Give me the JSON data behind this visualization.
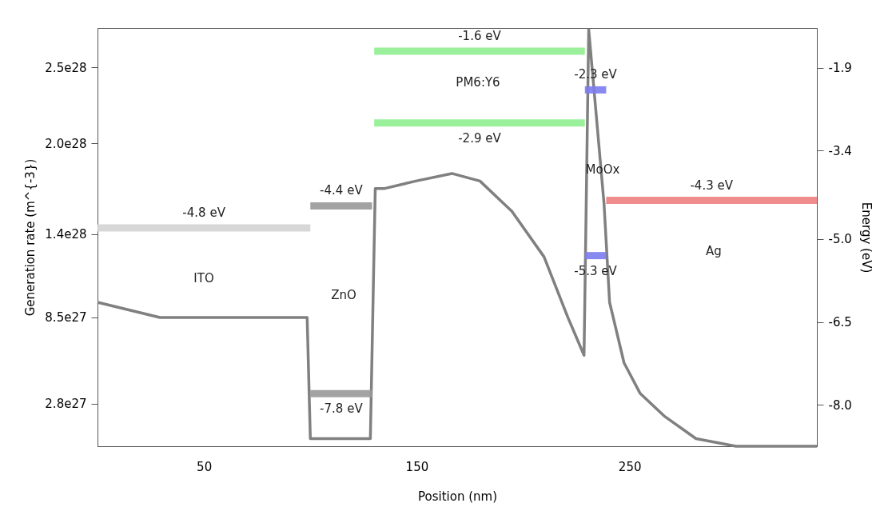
{
  "chart_data": {
    "type": "line",
    "xlabel": "Position (nm)",
    "ylabel": "Generation rate (m^{-3})",
    "y2label": "Energy (eV)",
    "xlim": [
      0,
      338
    ],
    "xticks": [
      50,
      150,
      250
    ],
    "ylim": [
      0,
      2.76e+28
    ],
    "yticks": [
      {
        "value": 2.8e+27,
        "label": "2.8e27"
      },
      {
        "value": 8.5e+27,
        "label": "8.5e27"
      },
      {
        "value": 1.4e+28,
        "label": "1.4e28"
      },
      {
        "value": 2e+28,
        "label": "2.0e28"
      },
      {
        "value": 2.5e+28,
        "label": "2.5e28"
      }
    ],
    "y2lim": [
      -8.75,
      -1.18
    ],
    "y2ticks": [
      -1.9,
      -3.4,
      {
        "value": -5,
        "label": "-5.0"
      },
      -6.5,
      {
        "value": -8,
        "label": "-8.0"
      }
    ],
    "series": [
      {
        "color": "#808080",
        "x": [
          0,
          29.3,
          59.4,
          82,
          98.5,
          100,
          104.5,
          115.8,
          128.2,
          130.5,
          134.6,
          149.6,
          166.5,
          179.7,
          194.7,
          209.8,
          221,
          228.6,
          230.8,
          238,
          240.6,
          247.4,
          254.9,
          266.2,
          281.2,
          300,
          338
        ],
        "values": [
          9.5e+27,
          8.5e+27,
          8.5e+27,
          8.5e+27,
          8.5e+27,
          5e+26,
          5e+26,
          5e+26,
          5e+26,
          1.7e+28,
          1.7e+28,
          1.75e+28,
          1.8e+28,
          1.75e+28,
          1.55e+28,
          1.25e+28,
          8.5e+27,
          6e+27,
          2.75e+28,
          1.6e+28,
          9.5e+27,
          5.5e+27,
          3.5e+27,
          2e+27,
          5e+26,
          0,
          0
        ]
      },
      {
        "axis": "y2",
        "color": "#d3d3d3",
        "x": [
          0,
          50,
          100
        ],
        "values": [
          -4.8,
          -4.8,
          -4.8
        ],
        "value_labels": [
          null,
          "-4.8 eV",
          null
        ]
      },
      {
        "axis": "y2",
        "color": "#999999",
        "x": [
          100,
          114.5,
          129
        ],
        "values": [
          -4.4,
          -4.4,
          -4.4
        ],
        "value_labels": [
          null,
          "-4.4 eV",
          null
        ]
      },
      {
        "axis": "y2",
        "color": "#999999",
        "x": [
          100,
          114.5,
          129
        ],
        "values": [
          -7.8,
          -7.8,
          -7.8
        ],
        "value_labels": [
          null,
          "-7.8 eV",
          null
        ]
      },
      {
        "axis": "y2",
        "color": "#90ee90",
        "x": [
          130,
          179.5,
          229
        ],
        "values": [
          -1.6,
          -1.6,
          -1.6
        ],
        "value_labels": [
          null,
          "-1.6 eV",
          null
        ]
      },
      {
        "axis": "y2",
        "color": "#90ee90",
        "x": [
          130,
          179.5,
          229
        ],
        "values": [
          -2.9,
          -2.9,
          -2.9
        ],
        "value_labels": [
          null,
          "-2.9 eV",
          null
        ]
      },
      {
        "axis": "y2",
        "color": "#7b7bf0",
        "x": [
          229,
          234,
          239
        ],
        "values": [
          -2.3,
          -2.3,
          -2.3
        ],
        "value_labels": [
          null,
          "-2.3 eV",
          null
        ]
      },
      {
        "axis": "y2",
        "color": "#7b7bf0",
        "x": [
          229,
          234,
          239
        ],
        "values": [
          -5.3,
          -5.3,
          -5.3
        ],
        "value_labels": [
          null,
          "-5.3 eV",
          null
        ]
      },
      {
        "axis": "y2",
        "color": "#f08080",
        "x": [
          239,
          288.5,
          338
        ],
        "values": [
          -4.3,
          -4.3,
          -4.3
        ],
        "value_labels": [
          null,
          "-4.3 eV",
          null
        ]
      }
    ],
    "annotations": [
      "ITO",
      "ZnO",
      "PM6:Y6",
      "MoOx",
      "Ag"
    ]
  }
}
